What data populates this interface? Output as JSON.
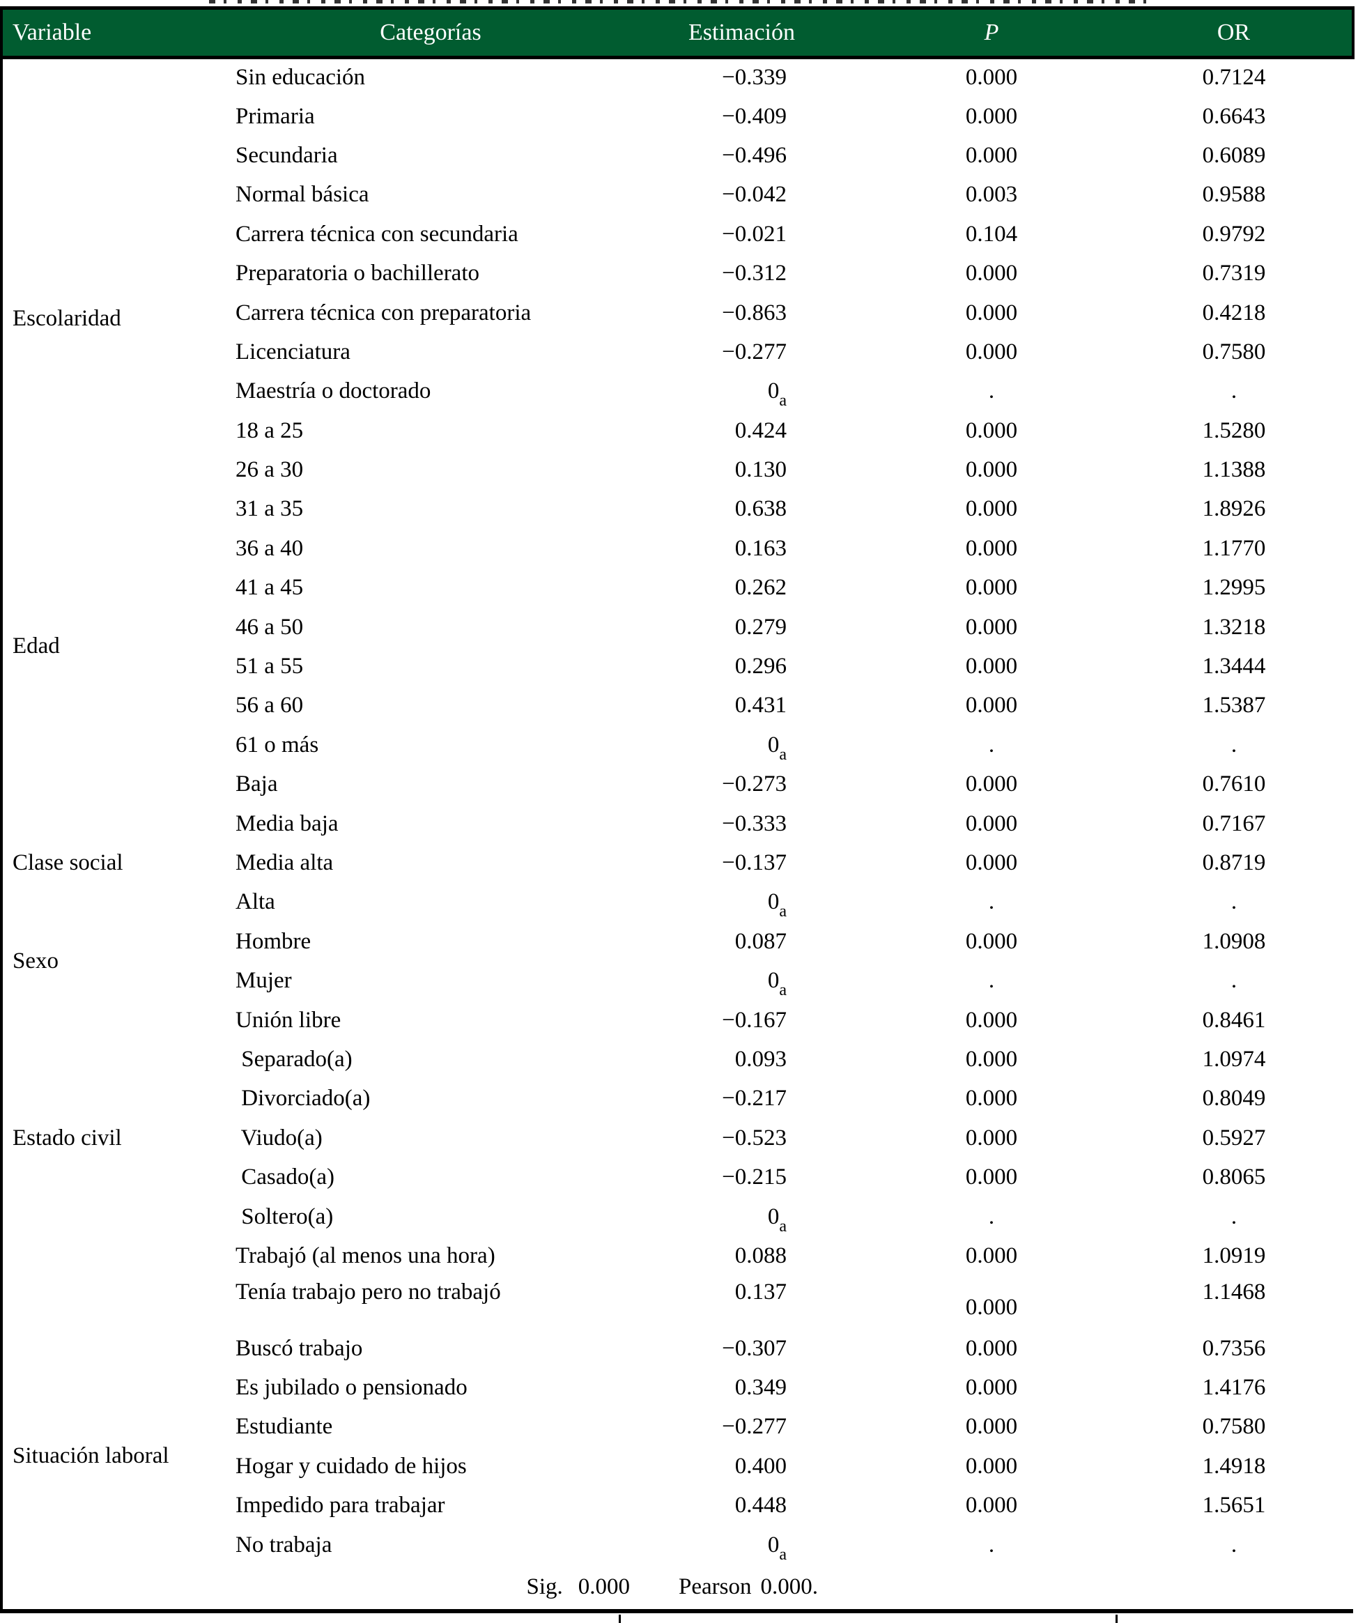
{
  "colors": {
    "header_bg": "#015C30",
    "header_text": "#FFFFFF",
    "body_text": "#000000",
    "border": "#000000"
  },
  "table": {
    "headers": {
      "variable": "Variable",
      "categorias": "Categorías",
      "estimacion": "Estimación",
      "p": "P",
      "or": "OR"
    },
    "groups": [
      {
        "variable": "Escolaridad",
        "rows": [
          {
            "categoria": "Sin educación",
            "estimacion": "−0.339",
            "p": "0.000",
            "or": "0.7124"
          },
          {
            "categoria": "Primaria",
            "estimacion": "−0.409",
            "p": "0.000",
            "or": "0.6643"
          },
          {
            "categoria": "Secundaria",
            "estimacion": "−0.496",
            "p": "0.000",
            "or": "0.6089"
          },
          {
            "categoria": "Normal básica",
            "estimacion": "−0.042",
            "p": "0.003",
            "or": "0.9588"
          },
          {
            "categoria": "Carrera técnica con secundaria",
            "estimacion": "−0.021",
            "p": "0.104",
            "or": "0.9792"
          },
          {
            "categoria": "Preparatoria o bachillerato",
            "estimacion": "−0.312",
            "p": "0.000",
            "or": "0.7319"
          },
          {
            "categoria": "Carrera técnica con preparatoria",
            "estimacion": "−0.863",
            "p": "0.000",
            "or": "0.4218"
          },
          {
            "categoria": "Licenciatura",
            "estimacion": "−0.277",
            "p": "0.000",
            "or": "0.7580"
          },
          {
            "categoria": "Maestría o doctorado",
            "estimacion": "0",
            "estimacion_sub": "a",
            "p": ".",
            "or": "."
          }
        ]
      },
      {
        "variable": "Edad",
        "rows": [
          {
            "categoria": "18 a 25",
            "estimacion": "0.424",
            "p": "0.000",
            "or": "1.5280"
          },
          {
            "categoria": "26 a 30",
            "estimacion": "0.130",
            "p": "0.000",
            "or": "1.1388"
          },
          {
            "categoria": "31 a 35",
            "estimacion": "0.638",
            "p": "0.000",
            "or": "1.8926"
          },
          {
            "categoria": "36 a 40",
            "estimacion": "0.163",
            "p": "0.000",
            "or": "1.1770"
          },
          {
            "categoria": "41 a 45",
            "estimacion": "0.262",
            "p": "0.000",
            "or": "1.2995"
          },
          {
            "categoria": "46 a 50",
            "estimacion": "0.279",
            "p": "0.000",
            "or": "1.3218"
          },
          {
            "categoria": "51 a 55",
            "estimacion": "0.296",
            "p": "0.000",
            "or": "1.3444"
          },
          {
            "categoria": "56 a 60",
            "estimacion": "0.431",
            "p": "0.000",
            "or": "1.5387"
          },
          {
            "categoria": "61 o más",
            "estimacion": "0",
            "estimacion_sub": "a",
            "p": ".",
            "or": "."
          }
        ]
      },
      {
        "variable": "Clase social",
        "rows": [
          {
            "categoria": "Baja",
            "estimacion": "−0.273",
            "p": "0.000",
            "or": "0.7610"
          },
          {
            "categoria": "Media baja",
            "estimacion": "−0.333",
            "p": "0.000",
            "or": "0.7167"
          },
          {
            "categoria": "Media alta",
            "estimacion": "−0.137",
            "p": "0.000",
            "or": "0.8719"
          },
          {
            "categoria": "Alta",
            "estimacion": "0",
            "estimacion_sub": "a",
            "p": ".",
            "or": "."
          }
        ]
      },
      {
        "variable": "Sexo",
        "rows": [
          {
            "categoria": "Hombre",
            "estimacion": "0.087",
            "p": "0.000",
            "or": "1.0908"
          },
          {
            "categoria": "Mujer",
            "estimacion": "0",
            "estimacion_sub": "a",
            "p": ".",
            "or": "."
          }
        ]
      },
      {
        "variable": "Estado civil",
        "rows": [
          {
            "categoria": "Unión libre",
            "estimacion": "−0.167",
            "p": "0.000",
            "or": "0.8461"
          },
          {
            "categoria": " Separado(a)",
            "estimacion": "0.093",
            "p": "0.000",
            "or": "1.0974"
          },
          {
            "categoria": " Divorciado(a)",
            "estimacion": "−0.217",
            "p": "0.000",
            "or": "0.8049"
          },
          {
            "categoria": " Viudo(a)",
            "estimacion": "−0.523",
            "p": "0.000",
            "or": "0.5927"
          },
          {
            "categoria": " Casado(a)",
            "estimacion": "−0.215",
            "p": "0.000",
            "or": "0.8065"
          },
          {
            "categoria": " Soltero(a)",
            "estimacion": "0",
            "estimacion_sub": "a",
            "p": ".",
            "or": "."
          }
        ]
      },
      {
        "variable": "Situación laboral",
        "rows": [
          {
            "categoria": "Trabajó (al menos una hora)",
            "estimacion": "0.088",
            "p": "0.000",
            "or": "1.0919"
          },
          {
            "categoria": "Tenía trabajo pero no trabajó",
            "estimacion": "0.137",
            "p": "0.000",
            "or": "1.1468",
            "tall": true,
            "p_bottom": true
          },
          {
            "categoria": "Buscó trabajo",
            "estimacion": "−0.307",
            "p": "0.000",
            "or": "0.7356"
          },
          {
            "categoria": "Es jubilado o pensionado",
            "estimacion": "0.349",
            "p": "0.000",
            "or": "1.4176"
          },
          {
            "categoria": "Estudiante",
            "estimacion": "−0.277",
            "p": "0.000",
            "or": "0.7580"
          },
          {
            "categoria": "Hogar y cuidado de hijos",
            "estimacion": "0.400",
            "p": "0.000",
            "or": "1.4918"
          },
          {
            "categoria": "Impedido para trabajar",
            "estimacion": "0.448",
            "p": "0.000",
            "or": "1.5651"
          },
          {
            "categoria": "No trabaja",
            "estimacion": "0",
            "estimacion_sub": "a",
            "p": ".",
            "or": "."
          }
        ]
      }
    ],
    "footer": {
      "sig_label": "Sig.",
      "sig_value": "0.000",
      "pearson_label": "Pearson",
      "pearson_value": "0.000."
    }
  }
}
